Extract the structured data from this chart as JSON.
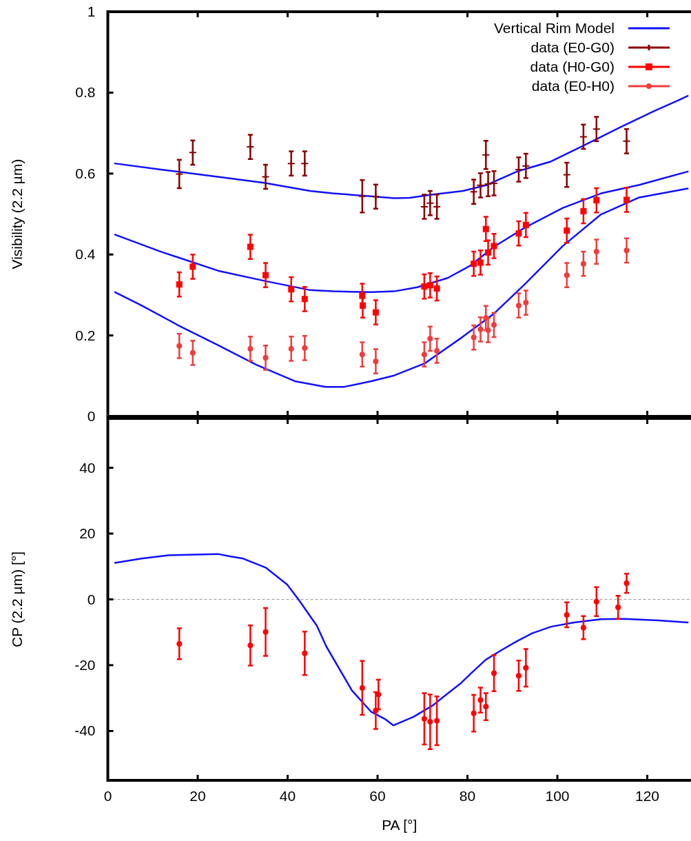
{
  "chart_data": [
    {
      "type": "scatter",
      "ylabel": "Visibility (2.2 µm)",
      "xlim": [
        0,
        130
      ],
      "ylim": [
        0,
        1
      ],
      "xticks": [
        0,
        20,
        40,
        60,
        80,
        100,
        120
      ],
      "yticks": [
        0,
        0.2,
        0.4,
        0.6,
        0.8,
        1
      ],
      "tick_labels": "y",
      "grid": false,
      "legend": "top right",
      "series": [
        {
          "name": "Vertical Rim Model",
          "type": "line",
          "color": "#1010ff",
          "marker": "none",
          "x": [
            1.6,
            11.8,
            24.5,
            34.8,
            45.0,
            50.1,
            58.6,
            63.7,
            67.1,
            72.2,
            79.0,
            84.1,
            91.0,
            98.6,
            106.3,
            113.9,
            121.6,
            126.7,
            129.0
          ],
          "values": [
            0.625,
            0.61,
            0.592,
            0.577,
            0.557,
            0.551,
            0.544,
            0.539,
            0.54,
            0.548,
            0.557,
            0.571,
            0.605,
            0.63,
            0.672,
            0.714,
            0.755,
            0.78,
            0.792
          ]
        },
        {
          "type": "line",
          "color": "#1010ff",
          "marker": "none",
          "x": [
            1.6,
            11.8,
            24.5,
            34.8,
            45.0,
            50.1,
            58.6,
            63.7,
            68.8,
            75.6,
            80.7,
            85.9,
            92.7,
            101.2,
            109.7,
            118.2,
            129.0
          ],
          "values": [
            0.449,
            0.407,
            0.36,
            0.335,
            0.312,
            0.309,
            0.307,
            0.309,
            0.319,
            0.342,
            0.373,
            0.419,
            0.466,
            0.515,
            0.551,
            0.572,
            0.605
          ]
        },
        {
          "type": "line",
          "color": "#1010ff",
          "marker": "none",
          "x": [
            1.6,
            7.5,
            16.0,
            24.5,
            33.1,
            41.6,
            48.4,
            52.6,
            58.6,
            63.7,
            70.5,
            79.0,
            85.9,
            92.7,
            101.2,
            109.7,
            118.2,
            129.0
          ],
          "values": [
            0.307,
            0.274,
            0.223,
            0.176,
            0.127,
            0.087,
            0.073,
            0.073,
            0.087,
            0.101,
            0.131,
            0.197,
            0.254,
            0.326,
            0.421,
            0.499,
            0.541,
            0.563
          ]
        },
        {
          "name": "data (E0-G0)",
          "type": "scatter",
          "color": "#8b0000",
          "marker": "cross",
          "x": [
            15.9,
            18.9,
            31.7,
            35.1,
            40.8,
            43.8,
            56.6,
            59.6,
            70.4,
            71.7,
            73.2,
            81.4,
            82.9,
            84.1,
            84.6,
            85.9,
            91.4,
            93.0,
            102.1,
            105.8,
            108.7,
            115.4
          ],
          "values": [
            0.599,
            0.652,
            0.666,
            0.592,
            0.625,
            0.625,
            0.544,
            0.543,
            0.518,
            0.527,
            0.518,
            0.555,
            0.571,
            0.646,
            0.574,
            0.576,
            0.61,
            0.619,
            0.597,
            0.691,
            0.71,
            0.68
          ],
          "errors": [
            0.035,
            0.03,
            0.03,
            0.03,
            0.03,
            0.03,
            0.04,
            0.03,
            0.03,
            0.03,
            0.03,
            0.03,
            0.03,
            0.035,
            0.03,
            0.03,
            0.03,
            0.03,
            0.03,
            0.03,
            0.03,
            0.03
          ]
        },
        {
          "name": "data (H0-G0)",
          "type": "scatter",
          "color": "#ff0000",
          "marker": "square",
          "x": [
            15.9,
            18.9,
            31.7,
            35.1,
            40.8,
            43.8,
            56.6,
            56.7,
            59.6,
            70.4,
            71.7,
            73.2,
            81.4,
            82.9,
            84.1,
            84.6,
            85.9,
            91.4,
            93.0,
            102.1,
            105.8,
            108.7,
            115.4
          ],
          "values": [
            0.326,
            0.37,
            0.419,
            0.349,
            0.314,
            0.29,
            0.298,
            0.274,
            0.257,
            0.321,
            0.324,
            0.316,
            0.377,
            0.38,
            0.463,
            0.405,
            0.421,
            0.452,
            0.473,
            0.459,
            0.507,
            0.534,
            0.535
          ],
          "errors": [
            0.03,
            0.03,
            0.03,
            0.03,
            0.03,
            0.03,
            0.03,
            0.03,
            0.03,
            0.03,
            0.03,
            0.03,
            0.03,
            0.03,
            0.03,
            0.03,
            0.03,
            0.03,
            0.03,
            0.03,
            0.03,
            0.03,
            0.03
          ]
        },
        {
          "name": "data (E0-H0)",
          "type": "scatter",
          "color": "#f03c3c",
          "marker": "circle",
          "x": [
            15.9,
            18.9,
            31.7,
            35.1,
            40.8,
            43.8,
            56.6,
            59.6,
            70.4,
            71.7,
            73.2,
            81.4,
            82.9,
            84.1,
            84.6,
            85.9,
            91.4,
            93.0,
            102.1,
            105.8,
            108.7,
            115.4
          ],
          "values": [
            0.174,
            0.157,
            0.167,
            0.145,
            0.167,
            0.169,
            0.153,
            0.136,
            0.153,
            0.192,
            0.162,
            0.195,
            0.215,
            0.243,
            0.213,
            0.226,
            0.274,
            0.281,
            0.349,
            0.377,
            0.407,
            0.41
          ],
          "errors": [
            0.03,
            0.03,
            0.03,
            0.03,
            0.03,
            0.03,
            0.03,
            0.03,
            0.03,
            0.03,
            0.03,
            0.03,
            0.03,
            0.03,
            0.03,
            0.03,
            0.03,
            0.03,
            0.03,
            0.03,
            0.03,
            0.03
          ]
        }
      ]
    },
    {
      "type": "scatter",
      "xlabel": "PA [°]",
      "ylabel": "CP (2.2 µm) [°]",
      "xlim": [
        0,
        130
      ],
      "ylim": [
        -55,
        55
      ],
      "xticks": [
        0,
        20,
        40,
        60,
        80,
        100,
        120
      ],
      "yticks": [
        -40,
        -20,
        0,
        20,
        40
      ],
      "grid": false,
      "ref_lines": [
        {
          "axis": "y",
          "value": 0,
          "color": "#999999",
          "line_style": "dashed"
        }
      ],
      "series": [
        {
          "type": "line",
          "color": "#1010ff",
          "marker": "none",
          "x": [
            1.6,
            7.5,
            13.5,
            24.5,
            27.1,
            30.1,
            35.2,
            39.9,
            42.4,
            46.5,
            48.6,
            54.3,
            58.6,
            61.8,
            63.5,
            68.0,
            72.2,
            75.6,
            78.6,
            80.7,
            84.1,
            87.6,
            91.0,
            94.4,
            98.6,
            103.7,
            109.7,
            114.8,
            122.5,
            129.0
          ],
          "values": [
            11.1,
            12.4,
            13.4,
            13.8,
            13.1,
            12.4,
            9.6,
            4.5,
            0,
            -8.0,
            -14.3,
            -27.7,
            -34.2,
            -36.5,
            -38.3,
            -35.7,
            -32.3,
            -28.6,
            -25.4,
            -22.6,
            -18.3,
            -15.4,
            -12.7,
            -10.3,
            -8.3,
            -7.0,
            -6.0,
            -5.9,
            -6.4,
            -7.0
          ]
        },
        {
          "type": "scatter",
          "color": "#ff0000",
          "marker": "circle",
          "x": [
            15.9,
            31.7,
            35.1,
            43.8,
            56.6,
            59.6,
            60.2,
            70.4,
            71.7,
            73.2,
            81.4,
            82.9,
            84.1,
            85.9,
            91.4,
            93.0,
            102.1,
            105.8,
            108.7,
            113.5,
            115.4
          ],
          "values": [
            -13.5,
            -14.0,
            -9.9,
            -16.4,
            -26.9,
            -33.8,
            -28.9,
            -36.3,
            -37.2,
            -36.9,
            -34.6,
            -30.6,
            -32.6,
            -22.4,
            -23.2,
            -20.8,
            -4.7,
            -8.6,
            -0.7,
            -2.4,
            4.9
          ],
          "errors": [
            4.7,
            6.1,
            7.3,
            6.6,
            8.2,
            5.6,
            4.5,
            7.8,
            8.3,
            7.4,
            5.6,
            3.8,
            4.1,
            5.5,
            4.6,
            5.7,
            3.8,
            3.5,
            4.4,
            3.5,
            2.9
          ]
        }
      ]
    }
  ]
}
